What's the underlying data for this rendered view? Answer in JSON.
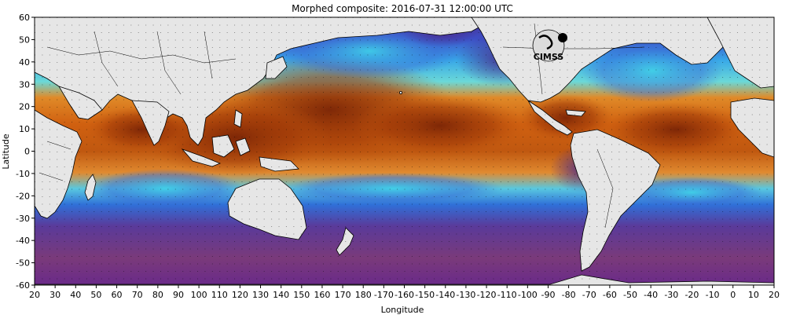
{
  "title": "Morphed composite: 2016-07-31 12:00:00 UTC",
  "x_axis": {
    "label": "Longitude",
    "ticks": [
      "20",
      "30",
      "40",
      "50",
      "60",
      "70",
      "80",
      "90",
      "100",
      "110",
      "120",
      "130",
      "140",
      "150",
      "160",
      "170",
      "180",
      "-170",
      "-160",
      "-150",
      "-140",
      "-130",
      "-120",
      "-110",
      "-100",
      "-90",
      "-80",
      "-70",
      "-60",
      "-50",
      "-40",
      "-30",
      "-20",
      "-10",
      "0",
      "10",
      "20"
    ]
  },
  "y_axis": {
    "label": "Latitude",
    "ticks": [
      "60",
      "50",
      "40",
      "30",
      "20",
      "10",
      "0",
      "-10",
      "-20",
      "-30",
      "-40",
      "-50",
      "-60"
    ]
  },
  "logo": {
    "text": "CIMSS"
  },
  "colors": {
    "land": "#e6e6e6",
    "dry": "#5a2e8c",
    "moist_low": "#3a6fd8",
    "moist_mid": "#3fd0e8",
    "moist_high": "#d86a10",
    "saturated": "#8a2e08"
  }
}
